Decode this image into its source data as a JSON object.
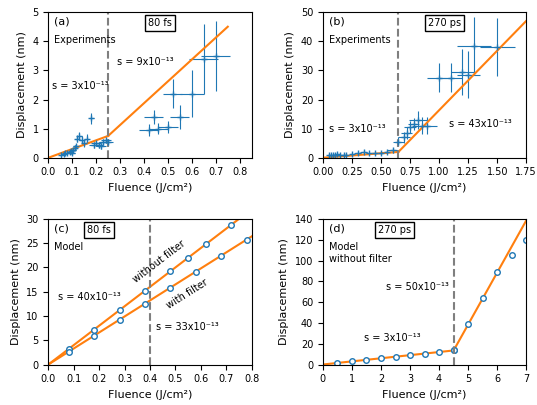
{
  "chart_data": [
    {
      "type": "line",
      "subtitle": "Experiments",
      "annotations": [
        "(a)",
        "80 fs",
        "s = 3x10⁻¹³",
        "s = 9x10⁻¹³"
      ],
      "x_label": "Fluence (J/cm²)",
      "y_label": "Displacement (nm)",
      "xlim": [
        0,
        0.85
      ],
      "ylim": [
        0,
        5
      ],
      "xticks": [
        {
          "value": 0,
          "label": "0.0"
        },
        {
          "value": 0.1,
          "label": "0.1"
        },
        {
          "value": 0.2,
          "label": "0.2"
        },
        {
          "value": 0.3,
          "label": "0.3"
        },
        {
          "value": 0.4,
          "label": "0.4"
        },
        {
          "value": 0.5,
          "label": "0.5"
        },
        {
          "value": 0.6,
          "label": "0.6"
        },
        {
          "value": 0.7,
          "label": "0.7"
        },
        {
          "value": 0.8,
          "label": "0.8"
        }
      ],
      "yticks": [
        0,
        1,
        2,
        3,
        4,
        5
      ],
      "series": [
        {
          "type": "scatter",
          "marker": "plus",
          "x": [
            0.055,
            0.065,
            0.07,
            0.08,
            0.09,
            0.095,
            0.1,
            0.105,
            0.11,
            0.115,
            0.12,
            0.13,
            0.14,
            0.15,
            0.16,
            0.18,
            0.19,
            0.2,
            0.21,
            0.22,
            0.23,
            0.24,
            0.25,
            0.42,
            0.44,
            0.46,
            0.5,
            0.52,
            0.55,
            0.6,
            0.65,
            0.7
          ],
          "values": [
            0.1,
            0.12,
            0.15,
            0.18,
            0.2,
            0.22,
            0.15,
            0.25,
            0.35,
            0.4,
            0.65,
            0.75,
            0.6,
            0.5,
            0.65,
            1.35,
            0.45,
            0.5,
            0.45,
            0.4,
            0.55,
            0.6,
            0.55,
            0.95,
            1.4,
            1.0,
            1.05,
            2.2,
            1.4,
            2.2,
            3.4,
            3.5
          ],
          "x_err": [
            0.005,
            0.005,
            0.005,
            0.01,
            0.01,
            0.01,
            0.01,
            0.01,
            0.01,
            0.01,
            0.01,
            0.01,
            0.01,
            0.01,
            0.01,
            0.01,
            0.02,
            0.02,
            0.02,
            0.02,
            0.02,
            0.02,
            0.02,
            0.04,
            0.04,
            0.04,
            0.04,
            0.04,
            0.04,
            0.05,
            0.06,
            0.06
          ],
          "y_err": [
            0.03,
            0.03,
            0.03,
            0.05,
            0.05,
            0.05,
            0.05,
            0.05,
            0.08,
            0.08,
            0.12,
            0.15,
            0.15,
            0.12,
            0.15,
            0.2,
            0.1,
            0.1,
            0.1,
            0.1,
            0.1,
            0.1,
            0.1,
            0.2,
            0.25,
            0.2,
            0.2,
            0.5,
            0.4,
            0.8,
            1.2,
            1.2
          ]
        },
        {
          "type": "line",
          "line_style": "solid",
          "x": [
            0.0,
            0.25
          ],
          "values": [
            0.0,
            0.75
          ]
        },
        {
          "type": "line",
          "line_style": "solid",
          "x": [
            0.25,
            0.75
          ],
          "values": [
            0.75,
            4.5
          ]
        },
        {
          "type": "vline",
          "line_style": "dashed",
          "x": 0.25
        }
      ]
    },
    {
      "type": "line",
      "subtitle": "Experiments",
      "annotations": [
        "(b)",
        "270 ps",
        "s = 3x10⁻¹³",
        "s = 43x10⁻¹³"
      ],
      "x_label": "Fluence (J/cm²)",
      "y_label": "Displacement (nm)",
      "xlim": [
        0,
        1.75
      ],
      "ylim": [
        0,
        50
      ],
      "xticks": [
        {
          "value": 0,
          "label": "0.00"
        },
        {
          "value": 0.25,
          "label": "0.25"
        },
        {
          "value": 0.5,
          "label": "0.50"
        },
        {
          "value": 0.75,
          "label": "0.75"
        },
        {
          "value": 1.0,
          "label": "1.00"
        },
        {
          "value": 1.25,
          "label": "1.25"
        },
        {
          "value": 1.5,
          "label": "1.50"
        },
        {
          "value": 1.75,
          "label": "1.75"
        }
      ],
      "yticks": [
        0,
        10,
        20,
        30,
        40,
        50
      ],
      "series": [
        {
          "type": "scatter",
          "marker": "plus",
          "x": [
            0.05,
            0.07,
            0.09,
            0.1,
            0.12,
            0.15,
            0.18,
            0.2,
            0.25,
            0.3,
            0.35,
            0.4,
            0.45,
            0.5,
            0.55,
            0.6,
            0.65,
            0.7,
            0.72,
            0.75,
            0.78,
            0.82,
            0.85,
            0.9,
            1.0,
            1.1,
            1.2,
            1.25,
            1.3,
            1.5
          ],
          "values": [
            1.0,
            1.0,
            1.0,
            1.0,
            1.2,
            1.0,
            1.0,
            1.0,
            1.2,
            1.5,
            2.0,
            1.5,
            1.5,
            1.5,
            2.0,
            2.5,
            5.5,
            7.0,
            8.5,
            10.5,
            11.5,
            13.0,
            11.0,
            11.0,
            27.5,
            27.5,
            29.5,
            28.5,
            38.5,
            38.0
          ],
          "x_err": [
            0.01,
            0.01,
            0.01,
            0.01,
            0.01,
            0.02,
            0.02,
            0.02,
            0.02,
            0.03,
            0.03,
            0.03,
            0.03,
            0.05,
            0.05,
            0.05,
            0.05,
            0.05,
            0.05,
            0.05,
            0.05,
            0.08,
            0.08,
            0.08,
            0.1,
            0.1,
            0.1,
            0.1,
            0.15,
            0.15
          ],
          "y_err": [
            0.3,
            0.3,
            0.3,
            0.3,
            0.3,
            0.3,
            0.3,
            0.3,
            0.3,
            0.5,
            0.5,
            0.5,
            0.5,
            0.5,
            0.5,
            1.0,
            1.5,
            2.0,
            2.0,
            2.0,
            2.0,
            3.0,
            3.0,
            3.0,
            5.0,
            5.0,
            8.0,
            8.0,
            10.0,
            10.0
          ]
        },
        {
          "type": "line",
          "line_style": "solid",
          "x": [
            0.0,
            0.65
          ],
          "values": [
            0.0,
            2.0
          ]
        },
        {
          "type": "line",
          "line_style": "solid",
          "x": [
            0.65,
            1.75
          ],
          "values": [
            2.0,
            47.0
          ]
        },
        {
          "type": "vline",
          "line_style": "dashed",
          "x": 0.65
        }
      ]
    },
    {
      "type": "line",
      "subtitle": "Model",
      "annotations": [
        "(c)",
        "80 fs",
        "s = 40x10⁻¹³",
        "s = 33x10⁻¹³"
      ],
      "x_label": "Fluence (J/cm²)",
      "y_label": "Displacement (nm)",
      "xlim": [
        0,
        0.8
      ],
      "ylim": [
        0,
        30
      ],
      "xticks": [
        {
          "value": 0,
          "label": "0.0"
        },
        {
          "value": 0.1,
          "label": "0.1"
        },
        {
          "value": 0.2,
          "label": "0.2"
        },
        {
          "value": 0.3,
          "label": "0.3"
        },
        {
          "value": 0.4,
          "label": "0.4"
        },
        {
          "value": 0.5,
          "label": "0.5"
        },
        {
          "value": 0.6,
          "label": "0.6"
        },
        {
          "value": 0.7,
          "label": "0.7"
        },
        {
          "value": 0.8,
          "label": "0.8"
        }
      ],
      "yticks": [
        0,
        5,
        10,
        15,
        20,
        25,
        30
      ],
      "series": [
        {
          "type": "line",
          "line_style": "solid",
          "name": "without filter",
          "x": [
            0.0,
            0.75
          ],
          "values": [
            0.0,
            30.0
          ]
        },
        {
          "type": "line",
          "line_style": "solid",
          "name": "with filter",
          "x": [
            0.0,
            0.8
          ],
          "values": [
            0.0,
            26.4
          ]
        },
        {
          "type": "scatter",
          "marker": "circle",
          "x": [
            0.08,
            0.18,
            0.28,
            0.38,
            0.48,
            0.55,
            0.62,
            0.72
          ],
          "values": [
            3.2,
            7.2,
            11.2,
            15.2,
            19.2,
            22.0,
            24.8,
            28.8
          ]
        },
        {
          "type": "scatter",
          "marker": "circle",
          "x": [
            0.08,
            0.18,
            0.28,
            0.38,
            0.48,
            0.58,
            0.68,
            0.78
          ],
          "values": [
            2.64,
            5.94,
            9.24,
            12.54,
            15.84,
            19.14,
            22.44,
            25.74
          ]
        },
        {
          "type": "vline",
          "line_style": "dashed",
          "x": 0.4
        }
      ]
    },
    {
      "type": "line",
      "subtitle": "Model\nwithout filter",
      "annotations": [
        "(d)",
        "270 ps",
        "s = 3x10⁻¹³",
        "s = 50x10⁻¹³"
      ],
      "x_label": "Fluence (J/cm²)",
      "y_label": "Displacement (nm)",
      "xlim": [
        0,
        7
      ],
      "ylim": [
        0,
        140
      ],
      "xticks": [
        0,
        1,
        2,
        3,
        4,
        5,
        6,
        7
      ],
      "yticks": [
        0,
        20,
        40,
        60,
        80,
        100,
        120,
        140
      ],
      "series": [
        {
          "type": "line",
          "line_style": "solid",
          "x": [
            0.0,
            4.5
          ],
          "values": [
            0.0,
            13.5
          ]
        },
        {
          "type": "line",
          "line_style": "solid",
          "x": [
            4.5,
            7.0
          ],
          "values": [
            13.5,
            138.5
          ]
        },
        {
          "type": "scatter",
          "marker": "circle",
          "x": [
            0.5,
            1.0,
            1.5,
            2.0,
            2.5,
            3.0,
            3.5,
            4.0,
            4.5
          ],
          "values": [
            1.5,
            3.0,
            4.5,
            6.0,
            7.5,
            9.0,
            10.5,
            12.0,
            13.5
          ]
        },
        {
          "type": "scatter",
          "marker": "circle",
          "x": [
            4.5,
            5.0,
            5.5,
            6.0,
            6.5,
            7.0
          ],
          "values": [
            13.5,
            38.5,
            63.5,
            88.5,
            105.0,
            120.0
          ]
        },
        {
          "type": "vline",
          "line_style": "dashed",
          "x": 4.5
        }
      ]
    }
  ]
}
